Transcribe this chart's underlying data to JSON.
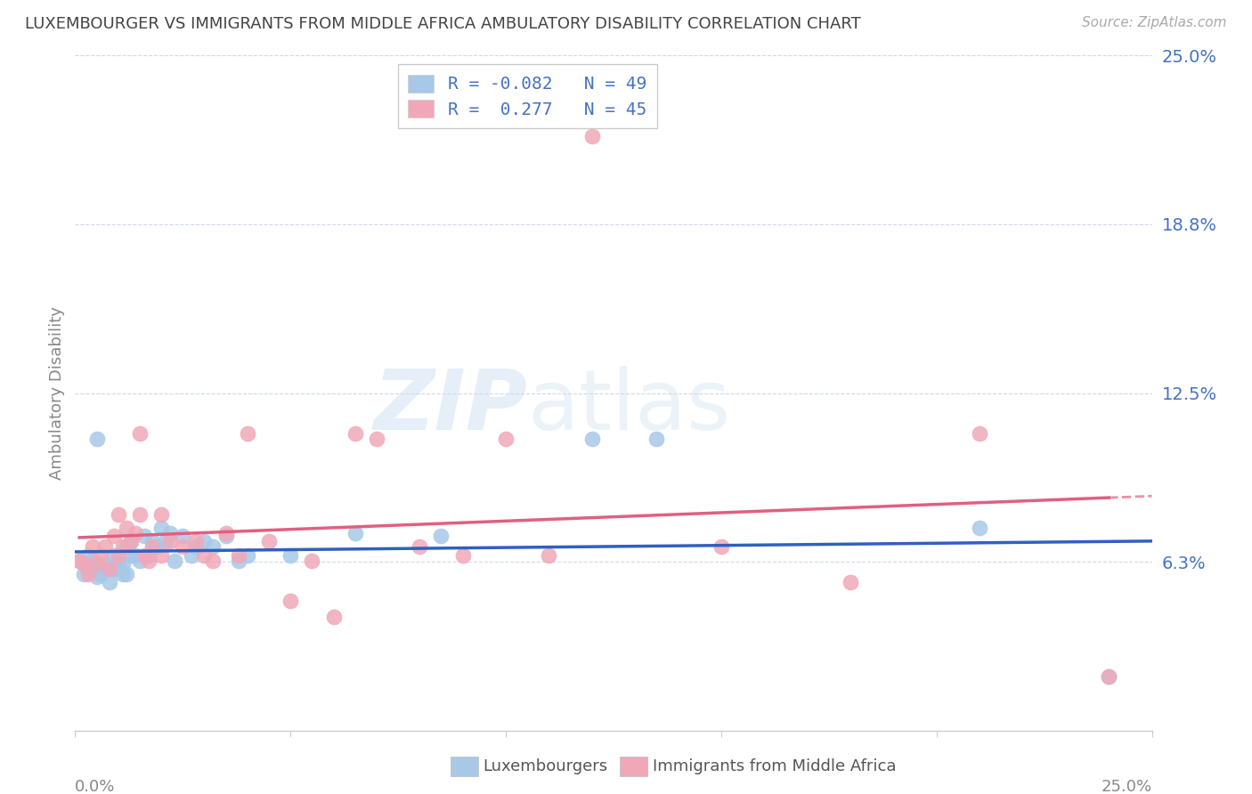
{
  "title": "LUXEMBOURGER VS IMMIGRANTS FROM MIDDLE AFRICA AMBULATORY DISABILITY CORRELATION CHART",
  "source": "Source: ZipAtlas.com",
  "ylabel": "Ambulatory Disability",
  "xlim": [
    0.0,
    0.25
  ],
  "ylim": [
    0.0,
    0.25
  ],
  "watermark_zip": "ZIP",
  "watermark_atlas": "atlas",
  "legend_text1": "R = -0.082   N = 49",
  "legend_text2": "R =  0.277   N = 45",
  "color_blue_dot": "#a8c8e8",
  "color_pink_dot": "#f0a8b8",
  "color_blue_line": "#3060c0",
  "color_pink_line": "#e06080",
  "color_blue_text": "#4472c4",
  "color_grid": "#d0d8e8",
  "color_axis_text": "#4472c4",
  "ytick_vals": [
    0.0625,
    0.125,
    0.1875,
    0.25
  ],
  "ytick_labels": [
    "6.3%",
    "12.5%",
    "18.8%",
    "25.0%"
  ],
  "lux_x": [
    0.001,
    0.002,
    0.003,
    0.003,
    0.004,
    0.005,
    0.005,
    0.006,
    0.006,
    0.007,
    0.007,
    0.008,
    0.008,
    0.009,
    0.009,
    0.01,
    0.01,
    0.011,
    0.011,
    0.012,
    0.012,
    0.013,
    0.013,
    0.014,
    0.015,
    0.016,
    0.017,
    0.018,
    0.019,
    0.02,
    0.021,
    0.022,
    0.023,
    0.025,
    0.027,
    0.028,
    0.03,
    0.032,
    0.035,
    0.038,
    0.04,
    0.05,
    0.065,
    0.085,
    0.12,
    0.135,
    0.21,
    0.24,
    0.005
  ],
  "lux_y": [
    0.063,
    0.058,
    0.065,
    0.06,
    0.063,
    0.062,
    0.057,
    0.06,
    0.058,
    0.062,
    0.06,
    0.055,
    0.06,
    0.065,
    0.06,
    0.062,
    0.06,
    0.058,
    0.062,
    0.058,
    0.068,
    0.065,
    0.07,
    0.065,
    0.063,
    0.072,
    0.065,
    0.07,
    0.068,
    0.075,
    0.07,
    0.073,
    0.063,
    0.072,
    0.065,
    0.068,
    0.07,
    0.068,
    0.072,
    0.063,
    0.065,
    0.065,
    0.073,
    0.072,
    0.108,
    0.108,
    0.075,
    0.02,
    0.108
  ],
  "imm_x": [
    0.001,
    0.002,
    0.003,
    0.004,
    0.005,
    0.006,
    0.007,
    0.008,
    0.009,
    0.01,
    0.011,
    0.012,
    0.013,
    0.014,
    0.015,
    0.016,
    0.017,
    0.018,
    0.02,
    0.022,
    0.025,
    0.028,
    0.03,
    0.032,
    0.035,
    0.038,
    0.04,
    0.045,
    0.05,
    0.055,
    0.06,
    0.065,
    0.07,
    0.08,
    0.09,
    0.1,
    0.11,
    0.12,
    0.15,
    0.18,
    0.21,
    0.24,
    0.01,
    0.015,
    0.02
  ],
  "imm_y": [
    0.063,
    0.062,
    0.058,
    0.068,
    0.062,
    0.065,
    0.068,
    0.06,
    0.072,
    0.065,
    0.068,
    0.075,
    0.07,
    0.073,
    0.08,
    0.065,
    0.063,
    0.068,
    0.08,
    0.07,
    0.068,
    0.07,
    0.065,
    0.063,
    0.073,
    0.065,
    0.11,
    0.07,
    0.048,
    0.063,
    0.042,
    0.11,
    0.108,
    0.068,
    0.065,
    0.108,
    0.065,
    0.22,
    0.068,
    0.055,
    0.11,
    0.02,
    0.08,
    0.11,
    0.065
  ]
}
